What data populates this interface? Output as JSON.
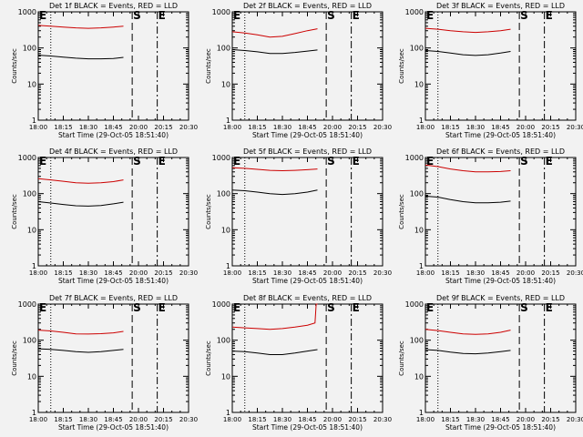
{
  "figure": {
    "background": "#f2f2f2",
    "ink": "#000000",
    "events_color": "#000000",
    "lld_color": "#cc0000",
    "start_time": "Start Time (29-Oct-05 18:51:40)",
    "ylabel": "Counts/sec",
    "marker_labels": [
      "S",
      "E",
      "S",
      "E"
    ]
  },
  "chart_data": [
    {
      "type": "line",
      "title": "Det 1f BLACK = Events, RED = LLD",
      "xlabel": "Start Time (29-Oct-05 18:51:40)",
      "ylabel": "Counts/sec",
      "x_ticks": [
        "18:00",
        "18:15",
        "18:30",
        "18:45",
        "20:00",
        "20:15",
        "20:30"
      ],
      "y_ticks": [
        "1",
        "10",
        "100",
        "1000"
      ],
      "y_scale": "log",
      "ylim": [
        1,
        1000
      ],
      "grid": false,
      "legend": "none",
      "markers": [
        {
          "label": "",
          "style": "dotted",
          "position": 0.5
        },
        {
          "label": "S",
          "style": "dashed",
          "position": 3.75
        },
        {
          "label": "E",
          "style": "dash-dot",
          "position": 4.75
        }
      ],
      "series": [
        {
          "color": "#cc0000",
          "x": [
            0,
            0.5,
            1,
            1.5,
            2,
            2.5,
            3,
            3.4
          ],
          "values": [
            420,
            400,
            380,
            360,
            350,
            360,
            380,
            400
          ]
        },
        {
          "color": "#000000",
          "x": [
            0,
            0.5,
            1,
            1.5,
            2,
            2.5,
            3,
            3.4
          ],
          "values": [
            63,
            60,
            56,
            52,
            50,
            50,
            51,
            55
          ]
        }
      ]
    },
    {
      "type": "line",
      "title": "Det 2f BLACK = Events, RED = LLD",
      "xlabel": "Start Time (29-Oct-05 18:51:40)",
      "ylabel": "Counts/sec",
      "x_ticks": [
        "18:00",
        "18:15",
        "18:30",
        "18:45",
        "20:00",
        "20:15",
        "20:30"
      ],
      "y_ticks": [
        "1",
        "10",
        "100",
        "1000"
      ],
      "y_scale": "log",
      "ylim": [
        1,
        1000
      ],
      "grid": false,
      "legend": "none",
      "markers": [
        {
          "label": "",
          "style": "dotted",
          "position": 0.5
        },
        {
          "label": "S",
          "style": "dashed",
          "position": 3.75
        },
        {
          "label": "E",
          "style": "dash-dot",
          "position": 4.75
        }
      ],
      "series": [
        {
          "color": "#cc0000",
          "x": [
            0,
            0.5,
            1,
            1.5,
            2,
            2.5,
            3,
            3.4
          ],
          "values": [
            280,
            260,
            230,
            200,
            210,
            250,
            300,
            340
          ]
        },
        {
          "color": "#000000",
          "x": [
            0,
            0.5,
            1,
            1.5,
            2,
            2.5,
            3,
            3.4
          ],
          "values": [
            90,
            85,
            78,
            70,
            70,
            75,
            82,
            88
          ]
        }
      ]
    },
    {
      "type": "line",
      "title": "Det 3f BLACK = Events, RED = LLD",
      "xlabel": "Start Time (29-Oct-05 18:51:40)",
      "ylabel": "Counts/sec",
      "x_ticks": [
        "18:00",
        "18:15",
        "18:30",
        "18:45",
        "20:00",
        "20:15",
        "20:30"
      ],
      "y_ticks": [
        "1",
        "10",
        "100",
        "1000"
      ],
      "y_scale": "log",
      "ylim": [
        1,
        1000
      ],
      "grid": false,
      "legend": "none",
      "markers": [
        {
          "label": "",
          "style": "dotted",
          "position": 0.5
        },
        {
          "label": "S",
          "style": "dashed",
          "position": 3.75
        },
        {
          "label": "E",
          "style": "dash-dot",
          "position": 4.75
        }
      ],
      "series": [
        {
          "color": "#cc0000",
          "x": [
            0,
            0.5,
            1,
            1.5,
            2,
            2.5,
            3,
            3.4
          ],
          "values": [
            350,
            330,
            300,
            280,
            270,
            280,
            300,
            330
          ]
        },
        {
          "color": "#000000",
          "x": [
            0,
            0.5,
            1,
            1.5,
            2,
            2.5,
            3,
            3.4
          ],
          "values": [
            85,
            80,
            72,
            65,
            62,
            65,
            72,
            80
          ]
        }
      ]
    },
    {
      "type": "line",
      "title": "Det 4f BLACK = Events, RED = LLD",
      "xlabel": "Start Time (29-Oct-05 18:51:40)",
      "ylabel": "Counts/sec",
      "x_ticks": [
        "18:00",
        "18:15",
        "18:30",
        "18:45",
        "20:00",
        "20:15",
        "20:30"
      ],
      "y_ticks": [
        "1",
        "10",
        "100",
        "1000"
      ],
      "y_scale": "log",
      "ylim": [
        1,
        1000
      ],
      "grid": false,
      "legend": "none",
      "markers": [
        {
          "label": "",
          "style": "dotted",
          "position": 0.5
        },
        {
          "label": "S",
          "style": "dashed",
          "position": 3.75
        },
        {
          "label": "E",
          "style": "dash-dot",
          "position": 4.75
        }
      ],
      "series": [
        {
          "color": "#cc0000",
          "x": [
            0,
            0.5,
            1,
            1.5,
            2,
            2.5,
            3,
            3.4
          ],
          "values": [
            260,
            240,
            220,
            200,
            195,
            200,
            215,
            240
          ]
        },
        {
          "color": "#000000",
          "x": [
            0,
            0.5,
            1,
            1.5,
            2,
            2.5,
            3,
            3.4
          ],
          "values": [
            60,
            55,
            50,
            46,
            45,
            47,
            52,
            58
          ]
        }
      ]
    },
    {
      "type": "line",
      "title": "Det 5f BLACK = Events, RED = LLD",
      "xlabel": "Start Time (29-Oct-05 18:51:40)",
      "ylabel": "Counts/sec",
      "x_ticks": [
        "18:00",
        "18:15",
        "18:30",
        "18:45",
        "20:00",
        "20:15",
        "20:30"
      ],
      "y_ticks": [
        "1",
        "10",
        "100",
        "1000"
      ],
      "y_scale": "log",
      "ylim": [
        1,
        1000
      ],
      "grid": false,
      "legend": "none",
      "markers": [
        {
          "label": "",
          "style": "dotted",
          "position": 0.5
        },
        {
          "label": "S",
          "style": "dashed",
          "position": 3.75
        },
        {
          "label": "E",
          "style": "dash-dot",
          "position": 4.75
        }
      ],
      "series": [
        {
          "color": "#cc0000",
          "x": [
            0,
            0.5,
            1,
            1.5,
            2,
            2.5,
            3,
            3.4
          ],
          "values": [
            520,
            500,
            470,
            440,
            430,
            440,
            460,
            480
          ]
        },
        {
          "color": "#000000",
          "x": [
            0,
            0.5,
            1,
            1.5,
            2,
            2.5,
            3,
            3.4
          ],
          "values": [
            125,
            120,
            110,
            100,
            95,
            100,
            110,
            125
          ]
        }
      ]
    },
    {
      "type": "line",
      "title": "Det 6f BLACK = Events, RED = LLD",
      "xlabel": "Start Time (29-Oct-05 18:51:40)",
      "ylabel": "Counts/sec",
      "x_ticks": [
        "18:00",
        "18:15",
        "18:30",
        "18:45",
        "20:00",
        "20:15",
        "20:30"
      ],
      "y_ticks": [
        "1",
        "10",
        "100",
        "1000"
      ],
      "y_scale": "log",
      "ylim": [
        1,
        1000
      ],
      "grid": false,
      "legend": "none",
      "markers": [
        {
          "label": "",
          "style": "dotted",
          "position": 0.5
        },
        {
          "label": "S",
          "style": "dashed",
          "position": 3.75
        },
        {
          "label": "E",
          "style": "dash-dot",
          "position": 4.75
        }
      ],
      "series": [
        {
          "color": "#cc0000",
          "x": [
            0,
            0.5,
            1,
            1.5,
            2,
            2.5,
            3,
            3.4
          ],
          "values": [
            620,
            560,
            480,
            430,
            400,
            400,
            410,
            430
          ]
        },
        {
          "color": "#000000",
          "x": [
            0,
            0.5,
            1,
            1.5,
            2,
            2.5,
            3,
            3.4
          ],
          "values": [
            85,
            80,
            68,
            60,
            56,
            56,
            58,
            62
          ]
        }
      ]
    },
    {
      "type": "line",
      "title": "Det 7f BLACK = Events, RED = LLD",
      "xlabel": "Start Time (29-Oct-05 18:51:40)",
      "ylabel": "Counts/sec",
      "x_ticks": [
        "18:00",
        "18:15",
        "18:30",
        "18:45",
        "20:00",
        "20:15",
        "20:30"
      ],
      "y_ticks": [
        "1",
        "10",
        "100",
        "1000"
      ],
      "y_scale": "log",
      "ylim": [
        1,
        1000
      ],
      "grid": false,
      "legend": "none",
      "markers": [
        {
          "label": "",
          "style": "dotted",
          "position": 0.5
        },
        {
          "label": "S",
          "style": "dashed",
          "position": 3.75
        },
        {
          "label": "E",
          "style": "dash-dot",
          "position": 4.75
        }
      ],
      "series": [
        {
          "color": "#cc0000",
          "x": [
            0,
            0.5,
            1,
            1.5,
            2,
            2.5,
            3,
            3.4
          ],
          "values": [
            190,
            180,
            165,
            150,
            148,
            152,
            160,
            175
          ]
        },
        {
          "color": "#000000",
          "x": [
            0,
            0.5,
            1,
            1.5,
            2,
            2.5,
            3,
            3.4
          ],
          "values": [
            58,
            56,
            52,
            48,
            46,
            48,
            52,
            56
          ]
        }
      ]
    },
    {
      "type": "line",
      "title": "Det 8f BLACK = Events, RED = LLD",
      "xlabel": "Start Time (29-Oct-05 18:51:40)",
      "ylabel": "Counts/sec",
      "x_ticks": [
        "18:00",
        "18:15",
        "18:30",
        "18:45",
        "20:00",
        "20:15",
        "20:30"
      ],
      "y_ticks": [
        "1",
        "10",
        "100",
        "1000"
      ],
      "y_scale": "log",
      "ylim": [
        1,
        1000
      ],
      "grid": false,
      "legend": "none",
      "markers": [
        {
          "label": "",
          "style": "dotted",
          "position": 0.5
        },
        {
          "label": "S",
          "style": "dashed",
          "position": 3.75
        },
        {
          "label": "E",
          "style": "dash-dot",
          "position": 4.75
        }
      ],
      "series": [
        {
          "color": "#cc0000",
          "x": [
            0,
            0.5,
            1,
            1.5,
            2,
            2.5,
            3,
            3.3,
            3.35,
            3.4
          ],
          "values": [
            230,
            220,
            210,
            200,
            210,
            230,
            260,
            300,
            1000,
            1000
          ]
        },
        {
          "color": "#000000",
          "x": [
            0,
            0.5,
            1,
            1.5,
            2,
            2.5,
            3,
            3.4
          ],
          "values": [
            50,
            48,
            44,
            40,
            40,
            44,
            50,
            55
          ]
        }
      ]
    },
    {
      "type": "line",
      "title": "Det 9f BLACK = Events, RED = LLD",
      "xlabel": "Start Time (29-Oct-05 18:51:40)",
      "ylabel": "Counts/sec",
      "x_ticks": [
        "18:00",
        "18:15",
        "18:30",
        "18:45",
        "20:00",
        "20:15",
        "20:30"
      ],
      "y_ticks": [
        "1",
        "10",
        "100",
        "1000"
      ],
      "y_scale": "log",
      "ylim": [
        1,
        1000
      ],
      "grid": false,
      "legend": "none",
      "markers": [
        {
          "label": "",
          "style": "dotted",
          "position": 0.5
        },
        {
          "label": "S",
          "style": "dashed",
          "position": 3.75
        },
        {
          "label": "E",
          "style": "dash-dot",
          "position": 4.75
        }
      ],
      "series": [
        {
          "color": "#cc0000",
          "x": [
            0,
            0.5,
            1,
            1.5,
            2,
            2.5,
            3,
            3.4
          ],
          "values": [
            200,
            185,
            165,
            150,
            145,
            150,
            165,
            190
          ]
        },
        {
          "color": "#000000",
          "x": [
            0,
            0.5,
            1,
            1.5,
            2,
            2.5,
            3,
            3.4
          ],
          "values": [
            55,
            52,
            47,
            43,
            42,
            44,
            48,
            52
          ]
        }
      ]
    }
  ]
}
